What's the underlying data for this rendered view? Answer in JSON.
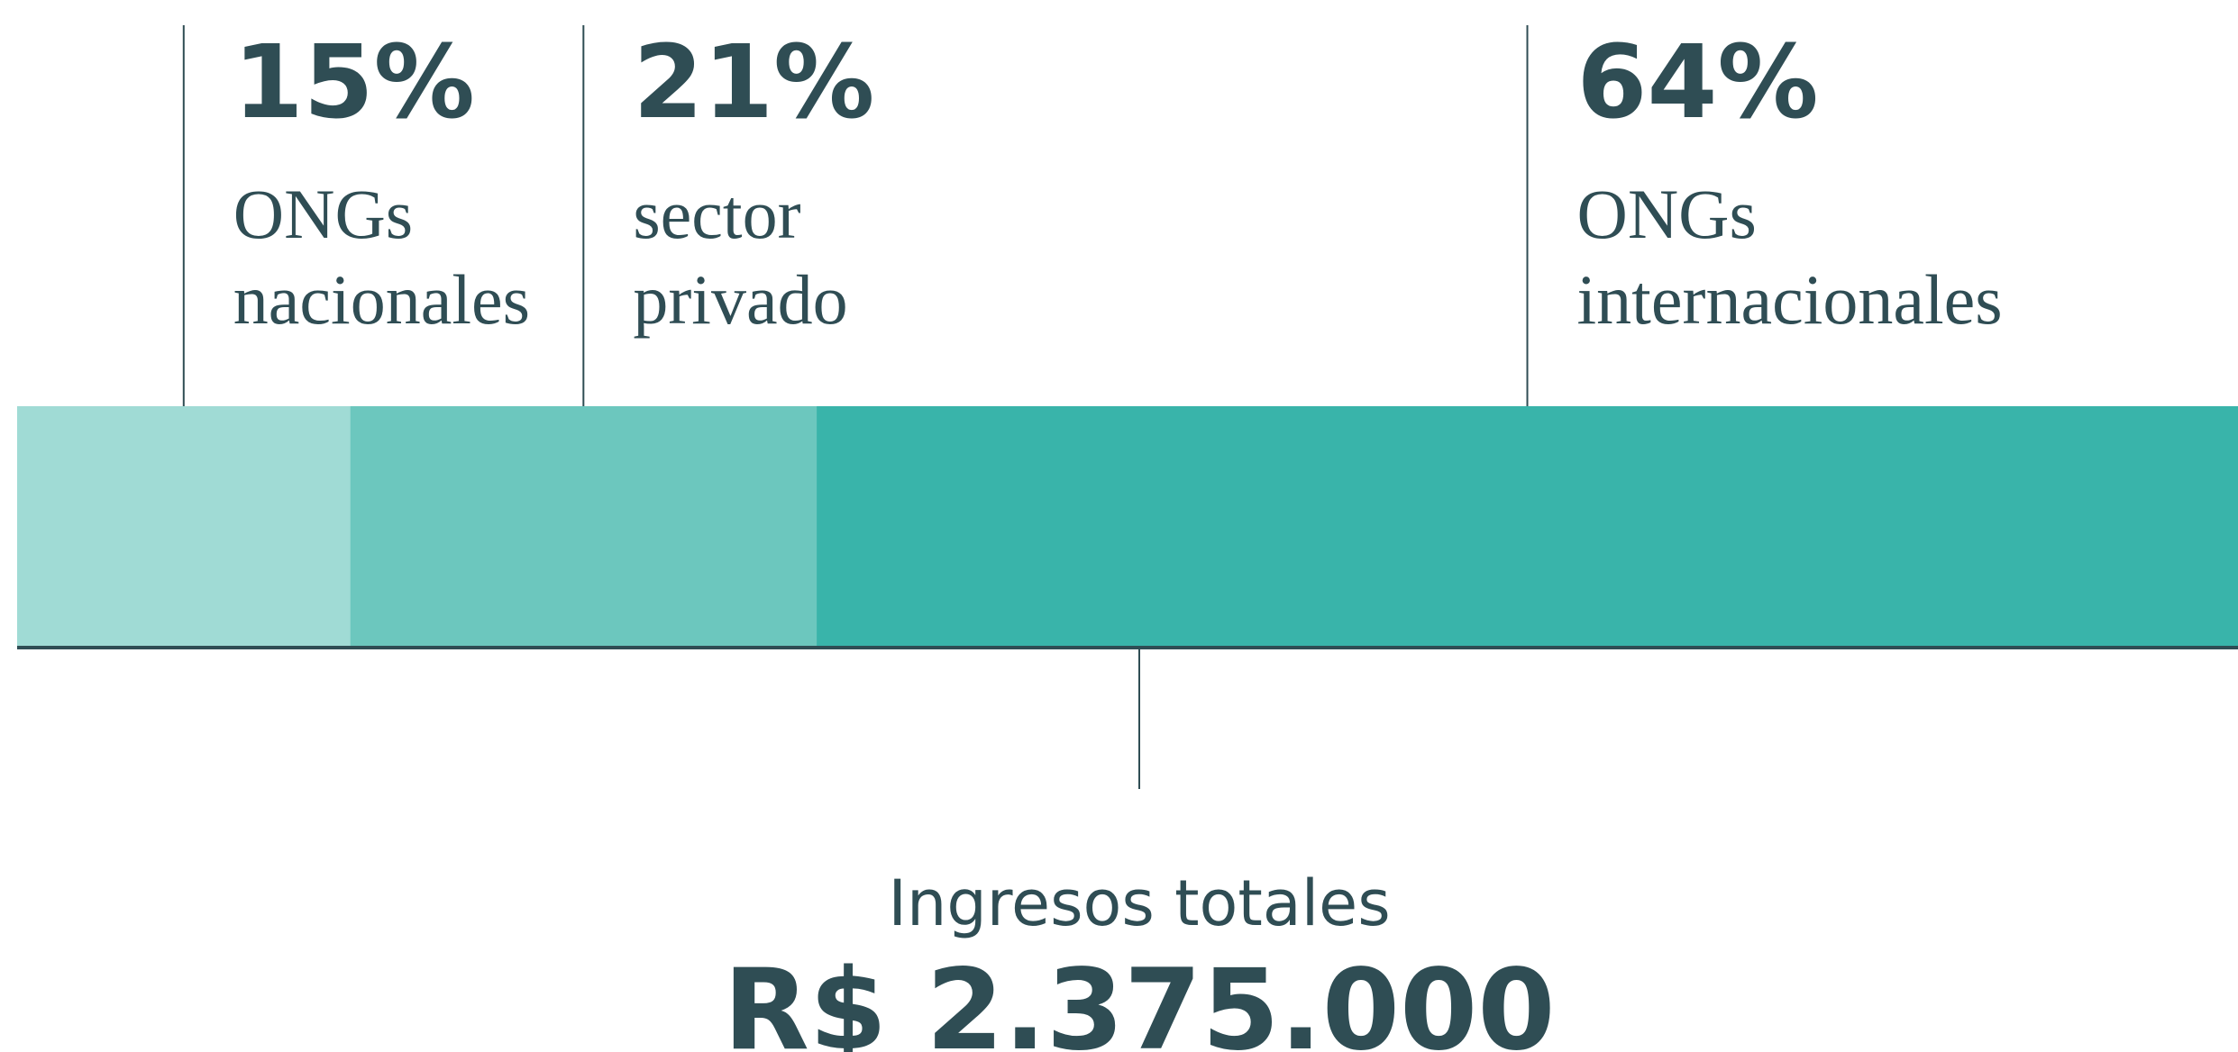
{
  "chart_data": {
    "type": "bar",
    "orientation": "horizontal",
    "stacked": true,
    "categories": [
      "ONGs nacionales",
      "sector privado",
      "ONGs internacionales"
    ],
    "values": [
      15,
      21,
      64
    ],
    "value_labels": [
      "15%",
      "21%",
      "64%"
    ],
    "colors": [
      "#a0dbd5",
      "#6cc7be",
      "#39b4aa"
    ],
    "xlim": [
      0,
      100
    ],
    "total_label": "Ingresos totales",
    "total_value_label": "R$ 2.375.000"
  }
}
